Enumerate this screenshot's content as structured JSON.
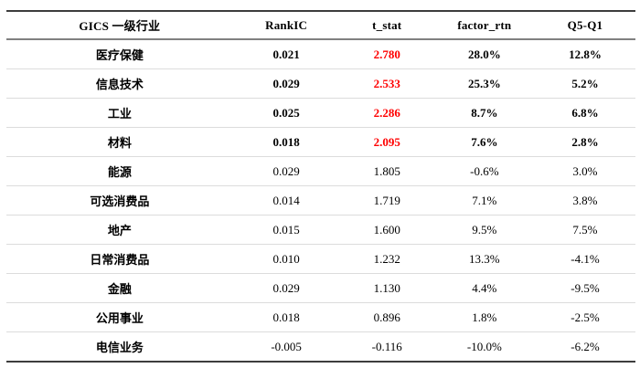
{
  "table": {
    "columns": [
      "GICS 一级行业",
      "RankIC",
      "t_stat",
      "factor_rtn",
      "Q5-Q1"
    ],
    "rows": [
      {
        "industry": "医疗保健",
        "rank_ic": "0.021",
        "t_stat": "2.780",
        "factor_rtn": "28.0%",
        "q5_q1": "12.8%",
        "significant": true
      },
      {
        "industry": "信息技术",
        "rank_ic": "0.029",
        "t_stat": "2.533",
        "factor_rtn": "25.3%",
        "q5_q1": "5.2%",
        "significant": true
      },
      {
        "industry": "工业",
        "rank_ic": "0.025",
        "t_stat": "2.286",
        "factor_rtn": "8.7%",
        "q5_q1": "6.8%",
        "significant": true
      },
      {
        "industry": "材料",
        "rank_ic": "0.018",
        "t_stat": "2.095",
        "factor_rtn": "7.6%",
        "q5_q1": "2.8%",
        "significant": true
      },
      {
        "industry": "能源",
        "rank_ic": "0.029",
        "t_stat": "1.805",
        "factor_rtn": "-0.6%",
        "q5_q1": "3.0%",
        "significant": false
      },
      {
        "industry": "可选消费品",
        "rank_ic": "0.014",
        "t_stat": "1.719",
        "factor_rtn": "7.1%",
        "q5_q1": "3.8%",
        "significant": false
      },
      {
        "industry": "地产",
        "rank_ic": "0.015",
        "t_stat": "1.600",
        "factor_rtn": "9.5%",
        "q5_q1": "7.5%",
        "significant": false
      },
      {
        "industry": "日常消费品",
        "rank_ic": "0.010",
        "t_stat": "1.232",
        "factor_rtn": "13.3%",
        "q5_q1": "-4.1%",
        "significant": false
      },
      {
        "industry": "金融",
        "rank_ic": "0.029",
        "t_stat": "1.130",
        "factor_rtn": "4.4%",
        "q5_q1": "-9.5%",
        "significant": false
      },
      {
        "industry": "公用事业",
        "rank_ic": "0.018",
        "t_stat": "0.896",
        "factor_rtn": "1.8%",
        "q5_q1": "-2.5%",
        "significant": false
      },
      {
        "industry": "电信业务",
        "rank_ic": "-0.005",
        "t_stat": "-0.116",
        "factor_rtn": "-10.0%",
        "q5_q1": "-6.2%",
        "significant": false
      }
    ],
    "colors": {
      "significant_text": "#FF0000",
      "heavy_rule": "#3D3D3D",
      "header_rule": "#808080",
      "row_rule": "#DCDCDC"
    }
  }
}
